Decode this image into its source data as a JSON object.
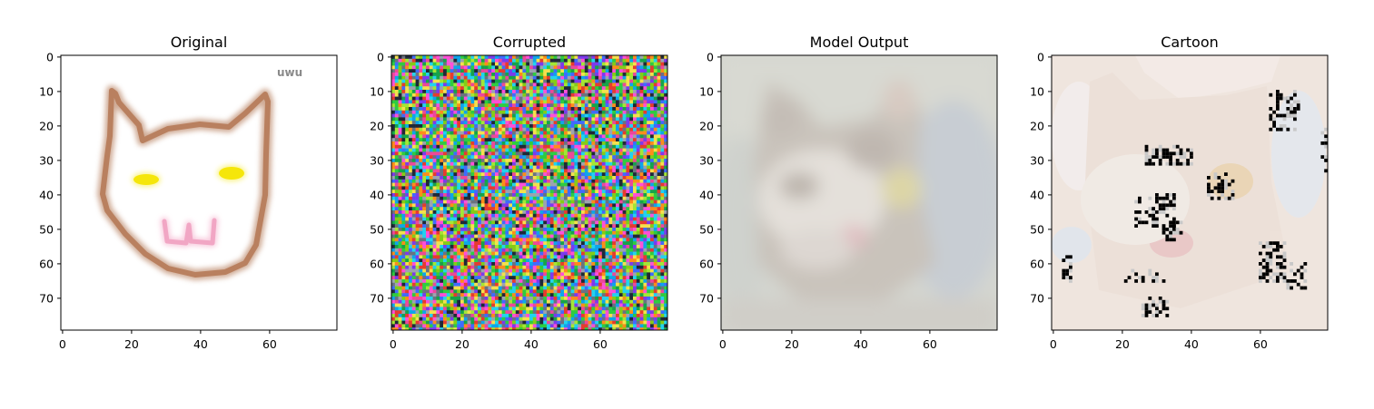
{
  "figure": {
    "panels": [
      {
        "id": "original",
        "title": "Original",
        "kind": "drawing",
        "sketch_text": "uwu"
      },
      {
        "id": "corrupted",
        "title": "Corrupted",
        "kind": "noise"
      },
      {
        "id": "model_output",
        "title": "Model Output",
        "kind": "photo"
      },
      {
        "id": "cartoon",
        "title": "Cartoon",
        "kind": "cartoon"
      }
    ],
    "axes": {
      "x_ticks": [
        "0",
        "20",
        "40",
        "60"
      ],
      "y_ticks": [
        "0",
        "10",
        "20",
        "30",
        "40",
        "50",
        "60",
        "70"
      ]
    }
  },
  "colors": {
    "sketch_outline": "#b9805f",
    "sketch_eyes": "#f5e60a",
    "sketch_mouth": "#f1a6c4",
    "photo_background": "#d4d6d0",
    "cartoon_background": "#efe5de"
  }
}
